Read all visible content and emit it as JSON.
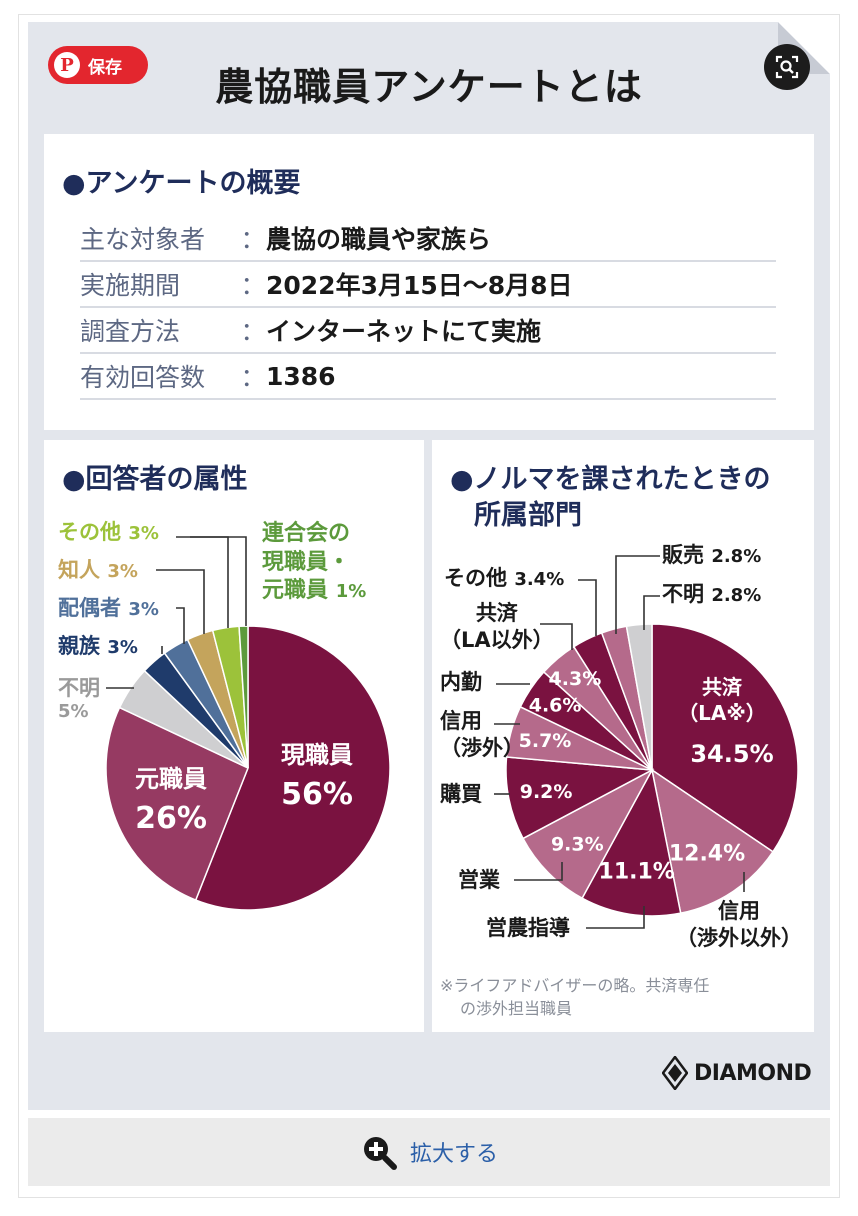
{
  "save_button": {
    "label": "保存"
  },
  "title": "農協職員アンケートとは",
  "overview": {
    "heading": "●アンケートの概要",
    "rows": [
      {
        "label": "主な対象者",
        "colon": "：",
        "value": "農協の職員や家族ら"
      },
      {
        "label": "実施期間",
        "colon": "：",
        "value": "2022年3月15日～8月8日"
      },
      {
        "label": "調査方法",
        "colon": "：",
        "value": "インターネットにて実施"
      },
      {
        "label": "有効回答数",
        "colon": "：",
        "value": "1386"
      }
    ]
  },
  "attr_section": {
    "heading": "●回答者の属性"
  },
  "dept_section": {
    "heading_line1": "●ノルマを課されたときの",
    "heading_line2": "所属部門"
  },
  "footnote": {
    "line1": "※ライフアドバイザーの略。共済専任",
    "line2": "の渉外担当職員"
  },
  "logo": {
    "text": "DIAMOND"
  },
  "enlarge": {
    "label": "拡大する"
  },
  "colors": {
    "maroon_dark": "#7a1240",
    "maroon_mid": "#963a62",
    "maroon_light": "#b56a8b",
    "gray": "#cfcfd1",
    "navy": "#1f3b6b",
    "slate": "#50709a",
    "tan": "#c4a45c",
    "lime": "#9cc23a",
    "green": "#5c9a3c"
  },
  "chart_data": [
    {
      "type": "pie",
      "title": "●回答者の属性",
      "slices": [
        {
          "name": "現職員",
          "value": 56,
          "label": "56%",
          "color": "#7a1240"
        },
        {
          "name": "元職員",
          "value": 26,
          "label": "26%",
          "color": "#963a62"
        },
        {
          "name": "不明",
          "value": 5,
          "label": "5%",
          "color": "#cfcfd1"
        },
        {
          "name": "親族",
          "value": 3,
          "label": "3%",
          "color": "#1f3b6b"
        },
        {
          "name": "配偶者",
          "value": 3,
          "label": "3%",
          "color": "#50709a"
        },
        {
          "name": "知人",
          "value": 3,
          "label": "3%",
          "color": "#c4a45c"
        },
        {
          "name": "その他",
          "value": 3,
          "label": "3%",
          "color": "#9cc23a"
        },
        {
          "name": "連合会の現職員・元職員",
          "name_lines": [
            "連合会の",
            "現職員・",
            "元職員"
          ],
          "value": 1,
          "label": "1%",
          "color": "#5c9a3c"
        }
      ]
    },
    {
      "type": "pie",
      "title": "●ノルマを課されたときの所属部門",
      "slices": [
        {
          "name": "共済（LA※）",
          "name_lines": [
            "共済",
            "（LA※）"
          ],
          "value": 34.5,
          "label": "34.5%",
          "color": "#7a1240"
        },
        {
          "name": "信用（渉外以外）",
          "name_lines": [
            "信用",
            "（渉外以外）"
          ],
          "value": 12.4,
          "label": "12.4%",
          "color": "#b56a8b"
        },
        {
          "name": "営農指導",
          "value": 11.1,
          "label": "11.1%",
          "color": "#7a1240"
        },
        {
          "name": "営業",
          "value": 9.3,
          "label": "9.3%",
          "color": "#b56a8b"
        },
        {
          "name": "購買",
          "value": 9.2,
          "label": "9.2%",
          "color": "#7a1240"
        },
        {
          "name": "信用（渉外）",
          "name_lines": [
            "信用",
            "（渉外）"
          ],
          "value": 5.7,
          "label": "5.7%",
          "color": "#b56a8b"
        },
        {
          "name": "内勤",
          "value": 4.6,
          "label": "4.6%",
          "color": "#7a1240"
        },
        {
          "name": "共済（LA以外）",
          "name_lines": [
            "共済",
            "（LA以外）"
          ],
          "value": 4.3,
          "label": "4.3%",
          "color": "#b56a8b"
        },
        {
          "name": "その他",
          "value": 3.4,
          "label": "3.4%",
          "color": "#7a1240"
        },
        {
          "name": "販売",
          "value": 2.8,
          "label": "2.8%",
          "color": "#b56a8b"
        },
        {
          "name": "不明",
          "value": 2.8,
          "label": "2.8%",
          "color": "#cfcfd1"
        }
      ]
    }
  ]
}
